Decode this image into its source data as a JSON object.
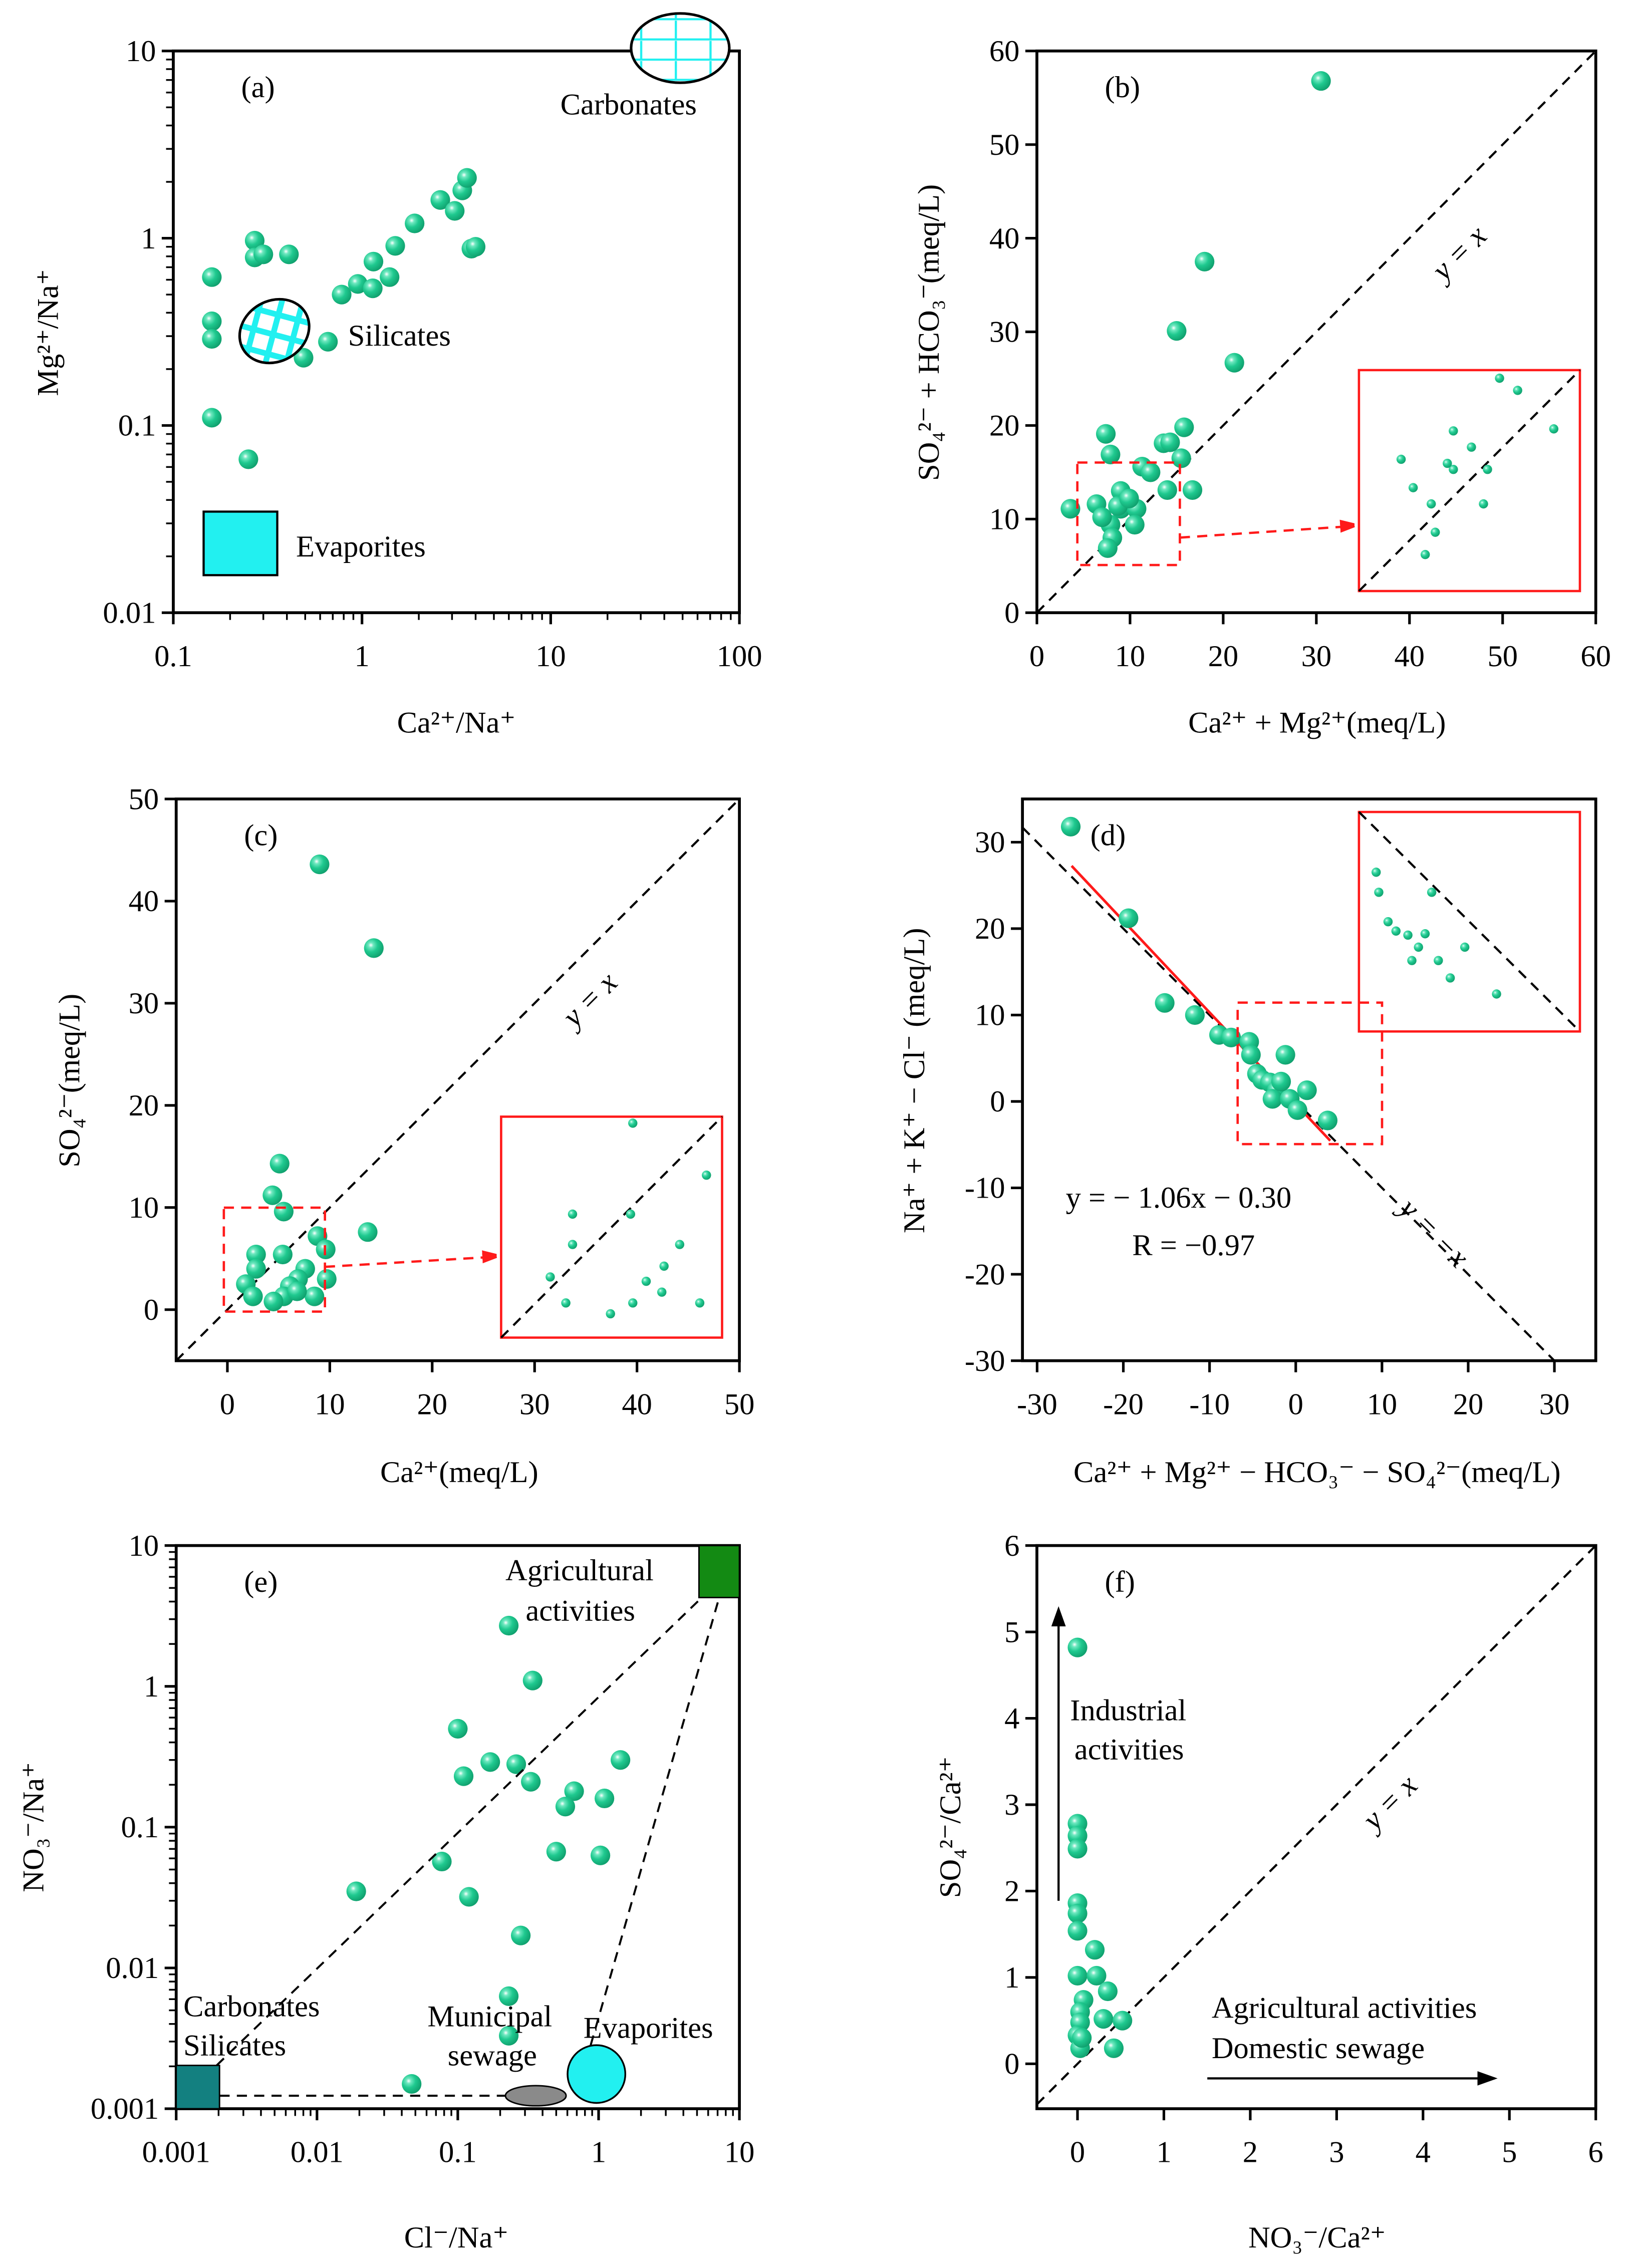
{
  "colors": {
    "point": "#1fc98f",
    "mineral": "#22f0f0",
    "red": "#ff1a1a",
    "agri": "#138a13",
    "carb_sil": "#138080",
    "sewage": "#8a8a8a"
  },
  "chart_data": [
    {
      "id": "a",
      "type": "scatter",
      "panel_label": "(a)",
      "xlabel": "Ca²⁺/Na⁺",
      "ylabel": "Mg²⁺/Na⁺",
      "xscale": "log",
      "yscale": "log",
      "xlim": [
        0.1,
        100
      ],
      "ylim": [
        0.01,
        10
      ],
      "xticks": [
        0.1,
        1,
        10,
        100
      ],
      "yticks": [
        0.01,
        0.1,
        1,
        10
      ],
      "annotations": {
        "carbonates": "Carbonates",
        "silicates": "Silicates",
        "evaporites": "Evaporites"
      },
      "points": [
        [
          0.16,
          0.62
        ],
        [
          0.16,
          0.36
        ],
        [
          0.16,
          0.29
        ],
        [
          0.16,
          0.11
        ],
        [
          0.25,
          0.066
        ],
        [
          0.27,
          0.97
        ],
        [
          0.27,
          0.79
        ],
        [
          0.3,
          0.82
        ],
        [
          0.41,
          0.82
        ],
        [
          0.45,
          0.35
        ],
        [
          0.49,
          0.23
        ],
        [
          0.66,
          0.28
        ],
        [
          0.78,
          0.5
        ],
        [
          0.95,
          0.57
        ],
        [
          1.15,
          0.75
        ],
        [
          1.14,
          0.54
        ],
        [
          1.4,
          0.62
        ],
        [
          1.5,
          0.91
        ],
        [
          1.9,
          1.2
        ],
        [
          2.6,
          1.6
        ],
        [
          3.1,
          1.4
        ],
        [
          3.4,
          1.8
        ],
        [
          3.6,
          2.1
        ],
        [
          3.8,
          0.88
        ],
        [
          4.0,
          0.9
        ]
      ]
    },
    {
      "id": "b",
      "type": "scatter",
      "panel_label": "(b)",
      "xlabel": "Ca²⁺ + Mg²⁺(meq/L)",
      "ylabel": "SO₄²⁻ + HCO₃⁻(meq/L)",
      "xscale": "linear",
      "yscale": "linear",
      "xlim": [
        0,
        60
      ],
      "ylim": [
        0,
        60
      ],
      "xticks": [
        0,
        10,
        20,
        30,
        40,
        50,
        60
      ],
      "yticks": [
        0,
        10,
        20,
        30,
        40,
        50,
        60
      ],
      "reference_line": "y = x",
      "inset_zoom": {
        "x": [
          4.3,
          15.3
        ],
        "y": [
          5.1,
          16
        ]
      },
      "points": [
        [
          30.5,
          56.8
        ],
        [
          18,
          37.5
        ],
        [
          15,
          30.1
        ],
        [
          21.2,
          26.7
        ],
        [
          7.4,
          19.1
        ],
        [
          15.8,
          19.8
        ],
        [
          15.5,
          16.5
        ],
        [
          13.6,
          18.1
        ],
        [
          14.3,
          18.2
        ],
        [
          7.9,
          16.9
        ],
        [
          11.3,
          15.6
        ],
        [
          12.2,
          15
        ],
        [
          3.6,
          11.1
        ],
        [
          6.4,
          11.6
        ],
        [
          9,
          13
        ],
        [
          9,
          11.1
        ],
        [
          7.9,
          9.4
        ],
        [
          10.7,
          11.1
        ],
        [
          10.5,
          9.4
        ],
        [
          8.7,
          11.4
        ],
        [
          8.1,
          8
        ],
        [
          7.6,
          6.9
        ],
        [
          14,
          13.1
        ],
        [
          16.7,
          13.1
        ],
        [
          9.9,
          12.2
        ],
        [
          7,
          10.2
        ]
      ]
    },
    {
      "id": "c",
      "type": "scatter",
      "panel_label": "(c)",
      "xlabel": "Ca²⁺(meq/L)",
      "ylabel": "SO₄²⁻(meq/L)",
      "xscale": "linear",
      "yscale": "linear",
      "xlim": [
        -5,
        50
      ],
      "ylim": [
        -5,
        50
      ],
      "xticks": [
        0,
        10,
        20,
        30,
        40,
        50
      ],
      "yticks": [
        0,
        10,
        20,
        30,
        40,
        50
      ],
      "reference_line": "y = x",
      "inset_zoom": {
        "x": [
          -0.4,
          9.5
        ],
        "y": [
          -0.3,
          9.9
        ]
      },
      "points": [
        [
          9.0,
          43.6
        ],
        [
          14.3,
          35.4
        ],
        [
          5.1,
          14.3
        ],
        [
          4.4,
          11.2
        ],
        [
          5.5,
          9.6
        ],
        [
          13.7,
          7.6
        ],
        [
          8.8,
          7.2
        ],
        [
          2.8,
          5.4
        ],
        [
          5.4,
          5.4
        ],
        [
          9.6,
          5.9
        ],
        [
          2.8,
          4
        ],
        [
          7.6,
          4
        ],
        [
          6.9,
          3
        ],
        [
          9.7,
          3
        ],
        [
          1.8,
          2.5
        ],
        [
          6.1,
          2.3
        ],
        [
          5.5,
          1.3
        ],
        [
          4.5,
          0.8
        ],
        [
          2.5,
          1.3
        ],
        [
          8.5,
          1.3
        ],
        [
          6.8,
          1.8
        ]
      ]
    },
    {
      "id": "d",
      "type": "scatter",
      "panel_label": "(d)",
      "xlabel": "Ca²⁺ + Mg²⁺ − HCO₃⁻ − SO₄²⁻(meq/L)",
      "ylabel": "Na⁺ + K⁺ − Cl⁻ (meq/L)",
      "xscale": "linear",
      "yscale": "linear",
      "xlim": [
        -31.7,
        34.8
      ],
      "ylim": [
        -30,
        35
      ],
      "xticks": [
        -30,
        -20,
        -10,
        0,
        10,
        20,
        30
      ],
      "yticks": [
        -30,
        -20,
        -10,
        0,
        10,
        20,
        30
      ],
      "reference_line": "y = −x",
      "regression": {
        "equation": "y = − 1.06x − 0.30",
        "r": "R = −0.97",
        "slope": -1.06,
        "intercept": -0.3,
        "x_range": [
          -26,
          4
        ]
      },
      "inset_zoom": {
        "x": [
          -6.7,
          10
        ],
        "y": [
          -5,
          11.4
        ]
      },
      "points": [
        [
          -26.1,
          31.8
        ],
        [
          -19.4,
          21.2
        ],
        [
          -15.2,
          11.4
        ],
        [
          -11.7,
          10
        ],
        [
          -8.9,
          7.7
        ],
        [
          -7.5,
          7.4
        ],
        [
          -5.4,
          6.9
        ],
        [
          -1.2,
          5.4
        ],
        [
          -5.2,
          5.4
        ],
        [
          -4.5,
          3.2
        ],
        [
          -3.9,
          2.5
        ],
        [
          -3,
          2.2
        ],
        [
          -2.2,
          1.3
        ],
        [
          -2.7,
          0.3
        ],
        [
          1.3,
          1.3
        ],
        [
          -0.7,
          0.3
        ],
        [
          0.2,
          -1
        ],
        [
          3.7,
          -2.2
        ],
        [
          -1.7,
          2.3
        ]
      ]
    },
    {
      "id": "e",
      "type": "scatter",
      "panel_label": "(e)",
      "xlabel": "Cl⁻/Na⁺",
      "ylabel": "NO₃⁻/Na⁺",
      "xscale": "log",
      "yscale": "log",
      "xlim": [
        0.001,
        10
      ],
      "ylim": [
        0.001,
        10
      ],
      "xticks": [
        0.001,
        0.01,
        0.1,
        1,
        10
      ],
      "yticks": [
        0.001,
        0.01,
        0.1,
        1,
        10
      ],
      "annotations": {
        "agri1": "Agricultural",
        "agri2": "activities",
        "carb": "Carbonates",
        "sil": "Silicates",
        "muni1": "Municipal",
        "muni2": "sewage",
        "evap": "Evaporites"
      },
      "points": [
        [
          0.23,
          2.7
        ],
        [
          0.34,
          1.1
        ],
        [
          0.1,
          0.5
        ],
        [
          1.43,
          0.3
        ],
        [
          0.17,
          0.29
        ],
        [
          0.26,
          0.28
        ],
        [
          0.11,
          0.23
        ],
        [
          0.33,
          0.21
        ],
        [
          0.67,
          0.18
        ],
        [
          0.58,
          0.14
        ],
        [
          1.1,
          0.16
        ],
        [
          0.5,
          0.067
        ],
        [
          1.03,
          0.063
        ],
        [
          0.077,
          0.057
        ],
        [
          0.019,
          0.035
        ],
        [
          0.12,
          0.032
        ],
        [
          0.28,
          0.017
        ],
        [
          0.23,
          0.0063
        ],
        [
          0.23,
          0.0033
        ],
        [
          0.047,
          0.0015
        ]
      ]
    },
    {
      "id": "f",
      "type": "scatter",
      "panel_label": "(f)",
      "xlabel": "NO₃⁻/Ca²⁺",
      "ylabel": "SO₄²⁻/Ca²⁺",
      "xscale": "linear",
      "yscale": "linear",
      "xlim": [
        -0.47,
        6
      ],
      "ylim": [
        -0.52,
        6
      ],
      "xticks": [
        0,
        1,
        2,
        3,
        4,
        5,
        6
      ],
      "yticks": [
        0,
        1,
        2,
        3,
        4,
        5,
        6
      ],
      "reference_line": "y = x",
      "annotations": {
        "ind1": "Industrial",
        "ind2": "activities",
        "agr": "Agricultural activities",
        "dom": "Domestic sewage"
      },
      "points": [
        [
          0,
          4.82
        ],
        [
          0,
          2.78
        ],
        [
          0,
          2.64
        ],
        [
          0,
          2.49
        ],
        [
          0,
          1.86
        ],
        [
          0,
          1.74
        ],
        [
          0,
          1.54
        ],
        [
          0.2,
          1.32
        ],
        [
          0,
          1.02
        ],
        [
          0.22,
          1.02
        ],
        [
          0.35,
          0.84
        ],
        [
          0.07,
          0.74
        ],
        [
          0.03,
          0.6
        ],
        [
          0.3,
          0.52
        ],
        [
          0.52,
          0.5
        ],
        [
          0.03,
          0.48
        ],
        [
          0,
          0.33
        ],
        [
          0.03,
          0.18
        ],
        [
          0.42,
          0.18
        ],
        [
          0.05,
          0.3
        ]
      ]
    }
  ]
}
